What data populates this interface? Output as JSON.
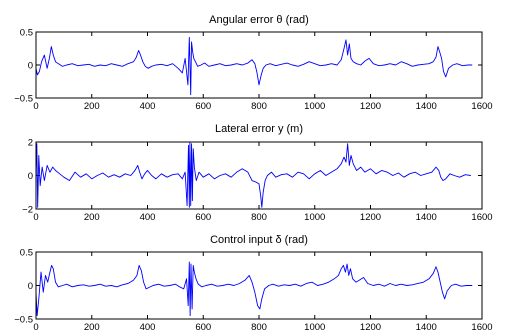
{
  "chart_data": [
    {
      "type": "line",
      "title": "Angular error θ (rad)",
      "xlabel": "",
      "ylabel": "",
      "xlim": [
        0,
        1600
      ],
      "ylim": [
        -0.5,
        0.5
      ],
      "xticks": [
        0,
        200,
        400,
        600,
        800,
        1000,
        1200,
        1400,
        1600
      ],
      "yticks": [
        -0.5,
        0,
        0.5
      ],
      "xtick_labels": [
        "0",
        "200",
        "400",
        "600",
        "800",
        "1000",
        "1200",
        "1400",
        "1600"
      ],
      "ytick_labels": [
        "−0.5",
        "0",
        "0.5"
      ],
      "grid": false,
      "color": "#0000ff",
      "series": [
        {
          "x": [
            0,
            5,
            12,
            20,
            30,
            40,
            48,
            55,
            62,
            70,
            80,
            95,
            110,
            130,
            150,
            170,
            190,
            210,
            230,
            250,
            270,
            290,
            310,
            330,
            350,
            360,
            368,
            375,
            383,
            392,
            402,
            415,
            430,
            450,
            470,
            490,
            510,
            525,
            535,
            545,
            550,
            555,
            558,
            562,
            566,
            572,
            580,
            592,
            605,
            620,
            640,
            660,
            680,
            700,
            720,
            740,
            760,
            775,
            785,
            792,
            800,
            808,
            815,
            825,
            840,
            860,
            880,
            900,
            920,
            940,
            960,
            980,
            1000,
            1020,
            1040,
            1060,
            1080,
            1095,
            1105,
            1112,
            1118,
            1124,
            1130,
            1138,
            1150,
            1165,
            1180,
            1195,
            1210,
            1230,
            1250,
            1270,
            1290,
            1310,
            1330,
            1350,
            1370,
            1390,
            1410,
            1425,
            1435,
            1442,
            1448,
            1455,
            1462,
            1470,
            1480,
            1495,
            1510,
            1530,
            1550,
            1565
          ],
          "y": [
            -0.05,
            -0.15,
            -0.1,
            0.05,
            0.15,
            -0.05,
            0.1,
            0.28,
            0.15,
            0.05,
            0.02,
            -0.02,
            0.0,
            0.02,
            -0.01,
            0.0,
            0.01,
            -0.02,
            0.0,
            -0.01,
            0.02,
            0.0,
            -0.02,
            0.02,
            0.05,
            0.12,
            0.22,
            0.15,
            0.05,
            -0.02,
            -0.05,
            -0.02,
            0.0,
            0.01,
            -0.01,
            0.02,
            -0.05,
            -0.12,
            0.1,
            -0.3,
            0.42,
            -0.45,
            0.35,
            0.2,
            0.1,
            0.05,
            -0.02,
            0.0,
            0.03,
            -0.02,
            0.0,
            0.02,
            -0.01,
            0.0,
            0.02,
            0.0,
            0.03,
            0.08,
            0.02,
            -0.1,
            -0.3,
            -0.15,
            -0.05,
            0.0,
            0.02,
            -0.01,
            0.01,
            0.03,
            0.0,
            -0.02,
            0.01,
            0.05,
            0.02,
            -0.01,
            0.0,
            0.02,
            0.0,
            0.08,
            0.25,
            0.38,
            0.15,
            0.32,
            0.1,
            0.05,
            0.02,
            0.0,
            0.06,
            0.1,
            0.02,
            -0.01,
            0.0,
            0.02,
            0.0,
            0.05,
            0.02,
            -0.02,
            0.0,
            0.01,
            0.02,
            0.05,
            0.12,
            0.28,
            0.2,
            0.1,
            -0.1,
            -0.18,
            -0.05,
            0.0,
            0.02,
            -0.01,
            0.0,
            0.0
          ]
        }
      ]
    },
    {
      "type": "line",
      "title": "Lateral error y (m)",
      "xlabel": "",
      "ylabel": "",
      "xlim": [
        0,
        1600
      ],
      "ylim": [
        -2,
        2
      ],
      "xticks": [
        0,
        200,
        400,
        600,
        800,
        1000,
        1200,
        1400,
        1600
      ],
      "yticks": [
        -2,
        0,
        2
      ],
      "xtick_labels": [
        "0",
        "200",
        "400",
        "600",
        "800",
        "1000",
        "1200",
        "1400",
        "1600"
      ],
      "ytick_labels": [
        "−2",
        "0",
        "2"
      ],
      "grid": false,
      "color": "#0000ff",
      "series": [
        {
          "x": [
            0,
            3,
            6,
            10,
            15,
            22,
            30,
            40,
            50,
            60,
            70,
            85,
            100,
            120,
            140,
            160,
            180,
            200,
            220,
            240,
            260,
            280,
            300,
            320,
            340,
            355,
            365,
            372,
            380,
            390,
            400,
            415,
            430,
            450,
            470,
            490,
            510,
            525,
            535,
            542,
            547,
            550,
            552,
            555,
            558,
            561,
            564,
            568,
            575,
            585,
            600,
            620,
            640,
            660,
            680,
            700,
            720,
            740,
            760,
            775,
            790,
            800,
            806,
            810,
            815,
            822,
            830,
            845,
            860,
            880,
            900,
            920,
            940,
            960,
            980,
            1000,
            1020,
            1040,
            1060,
            1080,
            1095,
            1105,
            1112,
            1118,
            1124,
            1130,
            1138,
            1150,
            1165,
            1180,
            1200,
            1220,
            1240,
            1260,
            1280,
            1300,
            1320,
            1340,
            1360,
            1380,
            1400,
            1420,
            1435,
            1445,
            1452,
            1460,
            1470,
            1485,
            1500,
            1520,
            1540,
            1560
          ],
          "y": [
            0.3,
            1.9,
            -1.9,
            1.2,
            -0.6,
            0.5,
            -0.3,
            0.6,
            0.2,
            0.5,
            0.3,
            0.1,
            -0.1,
            -0.3,
            0.2,
            -0.1,
            0.1,
            -0.2,
            0.0,
            0.15,
            -0.1,
            0.05,
            -0.1,
            0.1,
            0.0,
            0.3,
            0.6,
            0.2,
            -0.2,
            0.1,
            0.3,
            0.0,
            -0.2,
            0.1,
            -0.1,
            0.05,
            0.1,
            -0.2,
            0.2,
            -1.8,
            1.8,
            -1.9,
            2.0,
            -1.8,
            1.9,
            -1.5,
            1.6,
            0.5,
            -0.3,
            0.2,
            -0.1,
            0.1,
            -0.2,
            0.0,
            0.1,
            -0.1,
            0.2,
            0.4,
            0.2,
            -0.3,
            -0.4,
            -0.5,
            -1.2,
            -1.9,
            -1.0,
            -0.3,
            0.0,
            0.2,
            -0.1,
            0.05,
            0.1,
            -0.1,
            0.2,
            0.1,
            -0.2,
            0.1,
            0.3,
            0.0,
            0.2,
            0.4,
            0.7,
            1.1,
            0.8,
            1.9,
            0.6,
            1.2,
            0.7,
            0.3,
            0.5,
            0.2,
            0.4,
            0.1,
            0.3,
            0.2,
            0.0,
            0.15,
            -0.1,
            0.1,
            0.2,
            0.0,
            0.1,
            0.2,
            0.5,
            0.3,
            -0.1,
            -0.3,
            -0.2,
            0.1,
            0.0,
            -0.1,
            0.05,
            0.0
          ]
        }
      ]
    },
    {
      "type": "line",
      "title": "Control input δ (rad)",
      "xlabel": "",
      "ylabel": "",
      "xlim": [
        0,
        1600
      ],
      "ylim": [
        -0.5,
        0.5
      ],
      "xticks": [
        0,
        200,
        400,
        600,
        800,
        1000,
        1200,
        1400,
        1600
      ],
      "yticks": [
        -0.5,
        0,
        0.5
      ],
      "xtick_labels": [
        "0",
        "200",
        "400",
        "600",
        "800",
        "1000",
        "1200",
        "1400",
        "1600"
      ],
      "ytick_labels": [
        "−0.5",
        "0",
        "0.5"
      ],
      "grid": false,
      "color": "#0000ff",
      "series": [
        {
          "x": [
            0,
            4,
            10,
            18,
            26,
            34,
            42,
            50,
            56,
            62,
            70,
            80,
            95,
            110,
            130,
            150,
            170,
            190,
            210,
            230,
            250,
            270,
            290,
            310,
            330,
            350,
            362,
            370,
            378,
            386,
            395,
            405,
            420,
            440,
            460,
            480,
            500,
            515,
            530,
            540,
            546,
            550,
            553,
            556,
            560,
            564,
            568,
            574,
            582,
            595,
            610,
            630,
            650,
            670,
            690,
            710,
            730,
            750,
            765,
            775,
            785,
            795,
            803,
            810,
            820,
            835,
            850,
            870,
            890,
            910,
            930,
            950,
            970,
            990,
            1010,
            1030,
            1050,
            1070,
            1085,
            1095,
            1103,
            1110,
            1116,
            1122,
            1128,
            1136,
            1148,
            1160,
            1175,
            1190,
            1210,
            1230,
            1250,
            1270,
            1290,
            1310,
            1330,
            1350,
            1370,
            1390,
            1410,
            1425,
            1435,
            1442,
            1450,
            1458,
            1466,
            1475,
            1490,
            1505,
            1525,
            1545,
            1565
          ],
          "y": [
            -0.1,
            -0.45,
            -0.2,
            0.2,
            -0.1,
            0.15,
            0.05,
            0.2,
            0.3,
            0.25,
            0.05,
            -0.02,
            0.0,
            0.02,
            -0.02,
            0.0,
            0.01,
            -0.01,
            0.0,
            0.02,
            -0.01,
            0.0,
            -0.02,
            0.01,
            0.03,
            0.08,
            0.15,
            0.3,
            0.22,
            0.05,
            -0.05,
            -0.03,
            0.0,
            0.02,
            -0.01,
            0.0,
            0.02,
            -0.02,
            -0.05,
            0.1,
            -0.3,
            0.35,
            -0.45,
            0.32,
            -0.35,
            0.3,
            0.2,
            0.1,
            0.02,
            -0.02,
            0.0,
            0.02,
            -0.01,
            0.0,
            0.02,
            0.0,
            0.03,
            0.08,
            0.15,
            0.05,
            -0.1,
            -0.3,
            -0.35,
            -0.2,
            -0.05,
            0.0,
            0.02,
            -0.01,
            0.01,
            0.0,
            0.02,
            -0.01,
            0.03,
            0.05,
            0.0,
            0.02,
            0.05,
            0.1,
            0.15,
            0.25,
            0.3,
            0.2,
            0.32,
            0.15,
            0.25,
            0.1,
            0.05,
            0.08,
            0.12,
            0.03,
            0.0,
            0.02,
            -0.01,
            0.03,
            0.0,
            0.02,
            0.0,
            0.01,
            0.03,
            0.05,
            0.1,
            0.18,
            0.28,
            0.2,
            0.05,
            -0.1,
            -0.2,
            -0.08,
            0.0,
            0.02,
            -0.01,
            0.0,
            0.0
          ]
        }
      ]
    }
  ]
}
